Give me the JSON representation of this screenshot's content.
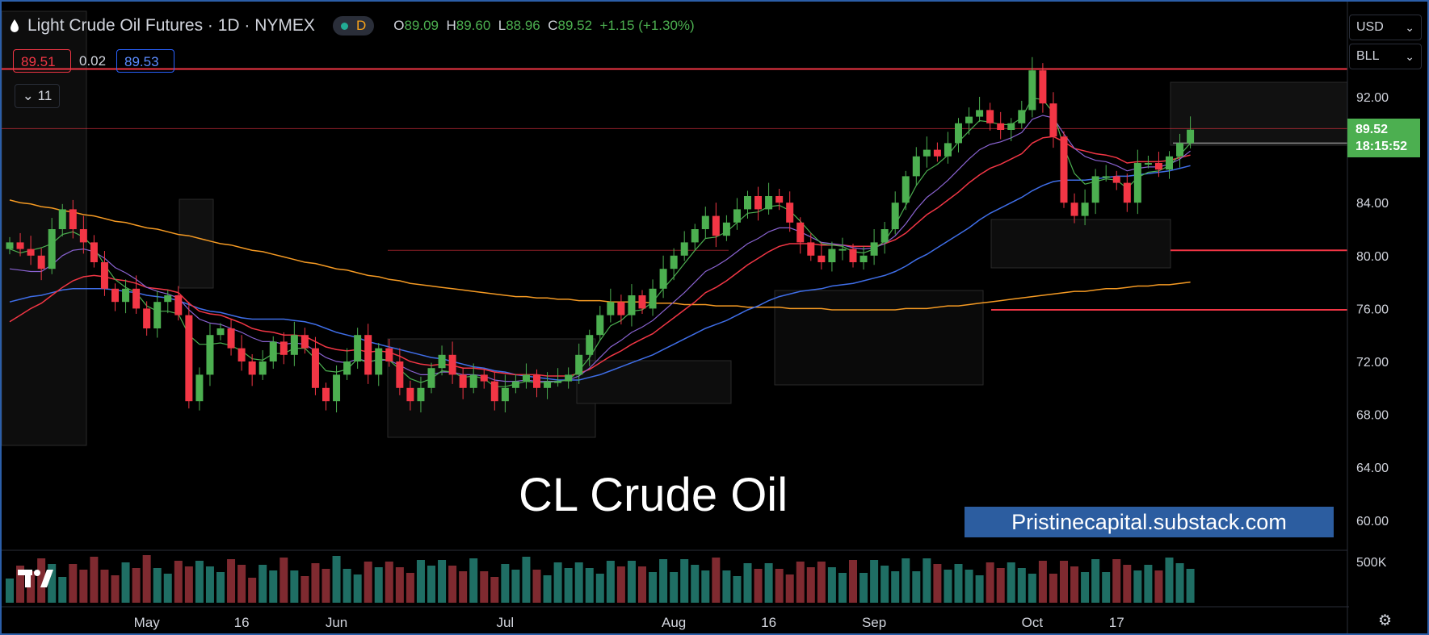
{
  "header": {
    "symbol_title": "Light Crude Oil Futures · 1D · NYMEX",
    "interval_badge": "D",
    "ohlc": {
      "o_label": "O",
      "o": "89.09",
      "h_label": "H",
      "h": "89.60",
      "l_label": "L",
      "l": "88.96",
      "c_label": "C",
      "c": "89.52",
      "change": "+1.15 (+1.30%)"
    }
  },
  "quote": {
    "bid": "89.51",
    "spread": "0.02",
    "ask": "89.53"
  },
  "indicators_toggle": {
    "count": "11"
  },
  "price_scale": {
    "currency": "USD",
    "unit": "BLL",
    "last_price": "89.52",
    "countdown": "18:15:52",
    "ticks": [
      "92.00",
      "88.00",
      "84.00",
      "80.00",
      "76.00",
      "72.00",
      "68.00",
      "64.00",
      "60.00"
    ],
    "volume_tick": "500K"
  },
  "watermark": {
    "title": "CL Crude Oil",
    "banner": "Pristinecapital.substack.com"
  },
  "colors": {
    "up": "#4caf50",
    "down": "#f23645",
    "ema_fast": "#4caf50",
    "ema_mid": "#8a63d2",
    "ema_20": "#f23645",
    "ema_50": "#3f6ee8",
    "sma_200": "#f59a23",
    "level_line": "#f23645",
    "vol_up": "#1f6e64",
    "vol_down": "#7f2a30"
  },
  "chart_data": {
    "type": "candlestick",
    "title": "Light Crude Oil Futures · 1D · NYMEX",
    "x_axis_labels": [
      "May",
      "16",
      "Jun",
      "Jul",
      "Aug",
      "16",
      "Sep",
      "Oct",
      "17"
    ],
    "ylim": [
      58.5,
      97.5
    ],
    "y_ticks": [
      92,
      88,
      84,
      80,
      76,
      72,
      68,
      64,
      60
    ],
    "series_close": [
      81,
      80.5,
      80,
      79,
      82,
      83.5,
      82,
      81,
      79.5,
      77.5,
      76.5,
      77.5,
      76,
      74.5,
      76.5,
      77,
      75.5,
      69,
      71,
      74,
      74.5,
      73,
      72,
      71,
      72,
      73.5,
      72.5,
      74,
      73,
      70,
      69,
      71,
      72,
      74,
      71,
      73,
      72,
      70,
      69,
      70,
      71.5,
      72.5,
      71,
      70,
      71,
      70.5,
      69,
      70,
      70.5,
      71,
      70,
      70.5,
      70.5,
      71,
      72.5,
      74,
      75.5,
      76.5,
      75.5,
      77,
      76,
      77.5,
      79,
      80,
      81,
      82,
      83,
      81.5,
      82.5,
      83.5,
      84.5,
      83.5,
      84.5,
      84,
      82.5,
      81,
      80,
      79.5,
      80.5,
      80.5,
      79.5,
      80,
      81,
      82,
      84,
      86,
      87.5,
      88,
      87.5,
      88.5,
      90,
      90.5,
      91,
      90,
      89.5,
      90,
      91,
      94,
      91.5,
      89,
      84,
      83,
      84,
      86,
      86,
      85.5,
      84,
      87,
      87,
      86.5,
      87.5,
      88.5,
      89.52
    ],
    "ema_fast": [
      80.5,
      80.2,
      80.4,
      80.6,
      80.9,
      81.6,
      81.8,
      81.4,
      80.6,
      79.3,
      78.2,
      77.6,
      77.2,
      76.2,
      75.8,
      75.8,
      75.6,
      74,
      73.3,
      73.3,
      73.4,
      73.2,
      72.8,
      72.2,
      72.1,
      72.6,
      72.6,
      73,
      73,
      72.2,
      71.3,
      71.2,
      71.4,
      72.2,
      71.9,
      72.2,
      72.1,
      71.4,
      70.7,
      70.4,
      70.7,
      71.3,
      71.2,
      70.8,
      70.9,
      70.7,
      70.1,
      70.1,
      70.3,
      70.5,
      70.4,
      70.4,
      70.5,
      70.6,
      71.3,
      72.3,
      73.6,
      74.7,
      75.1,
      75.8,
      75.9,
      76.5,
      77.5,
      78.4,
      79.4,
      80.4,
      81.3,
      81.4,
      81.8,
      82.5,
      83.2,
      83.3,
      83.7,
      83.8,
      83.4,
      82.6,
      81.7,
      80.9,
      80.8,
      80.7,
      80.3,
      80.2,
      80.5,
      81.1,
      82.3,
      83.8,
      85.3,
      86.4,
      86.9,
      87.6,
      88.6,
      89.4,
      90.2,
      90.1,
      89.9,
      89.9,
      90.4,
      91.9,
      91.8,
      90.8,
      88.2,
      86.2,
      85.4,
      85.6,
      85.8,
      85.7,
      85.1,
      85.9,
      86.3,
      86.4,
      86.8,
      87.6,
      88.5
    ],
    "ema_mid": [
      79,
      78.9,
      78.8,
      78.8,
      79.3,
      80,
      80.4,
      80.5,
      80.3,
      79.8,
      79.1,
      78.7,
      78.2,
      77.6,
      77.3,
      77.1,
      76.8,
      75.9,
      75.2,
      74.9,
      74.8,
      74.5,
      74.2,
      73.8,
      73.5,
      73.5,
      73.3,
      73.4,
      73.3,
      72.8,
      72.3,
      72,
      71.9,
      72.2,
      72,
      72.1,
      72.1,
      71.7,
      71.3,
      71,
      71,
      71.2,
      71.2,
      71,
      71,
      70.9,
      70.6,
      70.5,
      70.5,
      70.6,
      70.5,
      70.5,
      70.5,
      70.6,
      70.9,
      71.5,
      72.3,
      73.1,
      73.6,
      74.2,
      74.6,
      75.1,
      75.8,
      76.5,
      77.2,
      78,
      78.8,
      79.2,
      79.7,
      80.3,
      80.9,
      81.3,
      81.8,
      82.1,
      82.1,
      81.8,
      81.4,
      81,
      80.9,
      80.8,
      80.6,
      80.5,
      80.6,
      80.9,
      81.5,
      82.4,
      83.5,
      84.4,
      85,
      85.7,
      86.5,
      87.3,
      88,
      88.4,
      88.6,
      88.9,
      89.3,
      90.3,
      90.6,
      90.4,
      89.2,
      88.1,
      87.5,
      87.2,
      87.1,
      86.8,
      86.4,
      86.6,
      86.7,
      86.7,
      86.9,
      87.3,
      87.9
    ],
    "ema_20": [
      75,
      75.5,
      76,
      76.4,
      77,
      77.6,
      78.1,
      78.4,
      78.5,
      78.4,
      78.2,
      78.1,
      77.9,
      77.6,
      77.5,
      77.4,
      77.2,
      76.4,
      75.8,
      75.6,
      75.5,
      75.2,
      74.9,
      74.5,
      74.3,
      74.2,
      74,
      74,
      73.9,
      73.5,
      73.1,
      72.9,
      72.8,
      72.9,
      72.7,
      72.8,
      72.7,
      72.4,
      72,
      71.8,
      71.7,
      71.8,
      71.7,
      71.5,
      71.5,
      71.4,
      71.2,
      71.1,
      71,
      71,
      71,
      70.9,
      70.9,
      70.9,
      71.1,
      71.4,
      71.9,
      72.4,
      72.8,
      73.3,
      73.7,
      74.1,
      74.7,
      75.3,
      75.9,
      76.5,
      77.2,
      77.6,
      78.1,
      78.7,
      79.3,
      79.8,
      80.3,
      80.7,
      80.9,
      80.9,
      80.9,
      80.8,
      80.8,
      80.8,
      80.7,
      80.7,
      80.7,
      80.9,
      81.2,
      81.7,
      82.4,
      83.1,
      83.6,
      84.2,
      84.8,
      85.5,
      86.1,
      86.6,
      86.9,
      87.3,
      87.7,
      88.5,
      88.9,
      89,
      88.6,
      88.1,
      87.9,
      87.7,
      87.6,
      87.4,
      87,
      87.1,
      87.1,
      87.1,
      87.2,
      87.4,
      87.6
    ],
    "ema_50": [
      76.5,
      76.7,
      76.9,
      77,
      77.2,
      77.4,
      77.5,
      77.5,
      77.5,
      77.5,
      77.4,
      77.3,
      77.2,
      77,
      76.9,
      76.8,
      76.6,
      76.3,
      76,
      75.8,
      75.7,
      75.5,
      75.3,
      75.2,
      75.2,
      75.2,
      75.2,
      75.1,
      75,
      74.8,
      74.5,
      74.2,
      74,
      73.8,
      73.5,
      73.3,
      73.1,
      72.9,
      72.7,
      72.5,
      72.3,
      72.2,
      72,
      71.8,
      71.6,
      71.5,
      71.3,
      71.2,
      71,
      70.9,
      70.8,
      70.7,
      70.6,
      70.6,
      70.6,
      70.8,
      71,
      71.3,
      71.6,
      71.9,
      72.2,
      72.5,
      72.9,
      73.3,
      73.7,
      74.1,
      74.5,
      74.8,
      75.1,
      75.5,
      75.9,
      76.2,
      76.6,
      76.9,
      77.1,
      77.3,
      77.4,
      77.5,
      77.7,
      77.8,
      77.9,
      78.1,
      78.3,
      78.5,
      78.8,
      79.2,
      79.7,
      80.1,
      80.6,
      81.1,
      81.6,
      82.1,
      82.7,
      83.2,
      83.6,
      84,
      84.4,
      84.9,
      85.3,
      85.6,
      85.7,
      85.7,
      85.7,
      85.8,
      85.9,
      86,
      86,
      86.1,
      86.2,
      86.3,
      86.4,
      86.6,
      86.8
    ],
    "sma_200": [
      84.2,
      84,
      83.9,
      83.7,
      83.6,
      83.4,
      83.3,
      83.1,
      83,
      82.8,
      82.6,
      82.5,
      82.3,
      82.1,
      82,
      81.8,
      81.6,
      81.5,
      81.3,
      81.1,
      80.9,
      80.8,
      80.6,
      80.4,
      80.3,
      80.1,
      79.9,
      79.7,
      79.5,
      79.4,
      79.2,
      79,
      78.9,
      78.7,
      78.5,
      78.4,
      78.2,
      78.1,
      77.9,
      77.8,
      77.7,
      77.6,
      77.5,
      77.4,
      77.3,
      77.2,
      77.1,
      77,
      76.9,
      76.9,
      76.8,
      76.8,
      76.7,
      76.7,
      76.6,
      76.6,
      76.6,
      76.5,
      76.5,
      76.5,
      76.5,
      76.4,
      76.4,
      76.4,
      76.3,
      76.3,
      76.3,
      76.2,
      76.2,
      76.2,
      76.1,
      76.1,
      76.1,
      76.1,
      76,
      76,
      76,
      76,
      75.9,
      75.9,
      75.9,
      75.9,
      75.9,
      75.9,
      75.9,
      76,
      76,
      76,
      76.1,
      76.2,
      76.2,
      76.3,
      76.4,
      76.5,
      76.6,
      76.7,
      76.8,
      76.9,
      77,
      77.1,
      77.2,
      77.3,
      77.3,
      77.4,
      77.5,
      77.5,
      77.6,
      77.7,
      77.7,
      77.8,
      77.8,
      77.9,
      78
    ]
  }
}
